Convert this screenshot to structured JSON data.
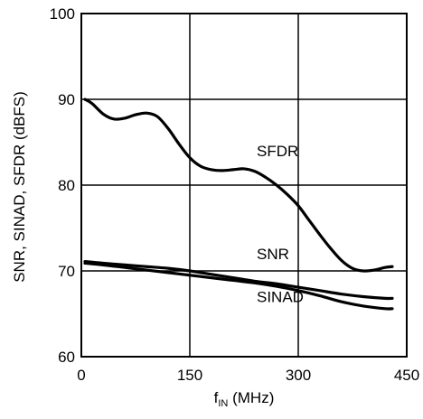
{
  "chart_data": {
    "type": "line",
    "xlabel": {
      "main": "f",
      "sub": "IN",
      "unit": " (MHz)"
    },
    "ylabel": "SNR, SINAD, SFDR (dBFS)",
    "xlim": [
      0,
      450
    ],
    "ylim": [
      60,
      100
    ],
    "x_ticks": [
      0,
      150,
      300,
      450
    ],
    "y_ticks": [
      60,
      70,
      80,
      90,
      100
    ],
    "x_tick_labels": [
      "0",
      "150",
      "300",
      "450"
    ],
    "y_tick_labels": [
      "60",
      "70",
      "80",
      "90",
      "100"
    ],
    "grid": true,
    "series": [
      {
        "name": "SFDR",
        "x": [
          5,
          15,
          30,
          45,
          60,
          75,
          90,
          105,
          120,
          135,
          150,
          165,
          180,
          195,
          210,
          225,
          240,
          255,
          270,
          285,
          300,
          315,
          330,
          345,
          360,
          375,
          390,
          405,
          420,
          430
        ],
        "y": [
          90.0,
          89.5,
          88.3,
          87.7,
          87.8,
          88.2,
          88.4,
          88.0,
          86.6,
          84.8,
          83.2,
          82.2,
          81.8,
          81.7,
          81.8,
          81.9,
          81.6,
          80.9,
          80.0,
          78.9,
          77.6,
          75.9,
          74.2,
          72.6,
          71.2,
          70.3,
          70.0,
          70.1,
          70.4,
          70.5
        ]
      },
      {
        "name": "SNR",
        "x": [
          5,
          30,
          60,
          90,
          120,
          150,
          180,
          210,
          240,
          270,
          300,
          330,
          360,
          390,
          420,
          430
        ],
        "y": [
          71.1,
          70.9,
          70.7,
          70.5,
          70.3,
          70.0,
          69.6,
          69.2,
          68.8,
          68.5,
          68.1,
          67.7,
          67.3,
          67.0,
          66.8,
          66.8
        ]
      },
      {
        "name": "SINAD",
        "x": [
          5,
          30,
          60,
          90,
          120,
          150,
          180,
          210,
          240,
          270,
          300,
          330,
          360,
          390,
          420,
          430
        ],
        "y": [
          70.9,
          70.7,
          70.4,
          70.1,
          69.8,
          69.5,
          69.2,
          68.9,
          68.6,
          68.2,
          67.7,
          67.1,
          66.4,
          65.9,
          65.6,
          65.6
        ]
      }
    ],
    "annotations": [
      {
        "text": "SFDR",
        "x": 205,
        "y": 84
      },
      {
        "text": "SNR",
        "x": 205,
        "y": 72
      },
      {
        "text": "SINAD",
        "x": 205,
        "y": 67
      }
    ]
  }
}
